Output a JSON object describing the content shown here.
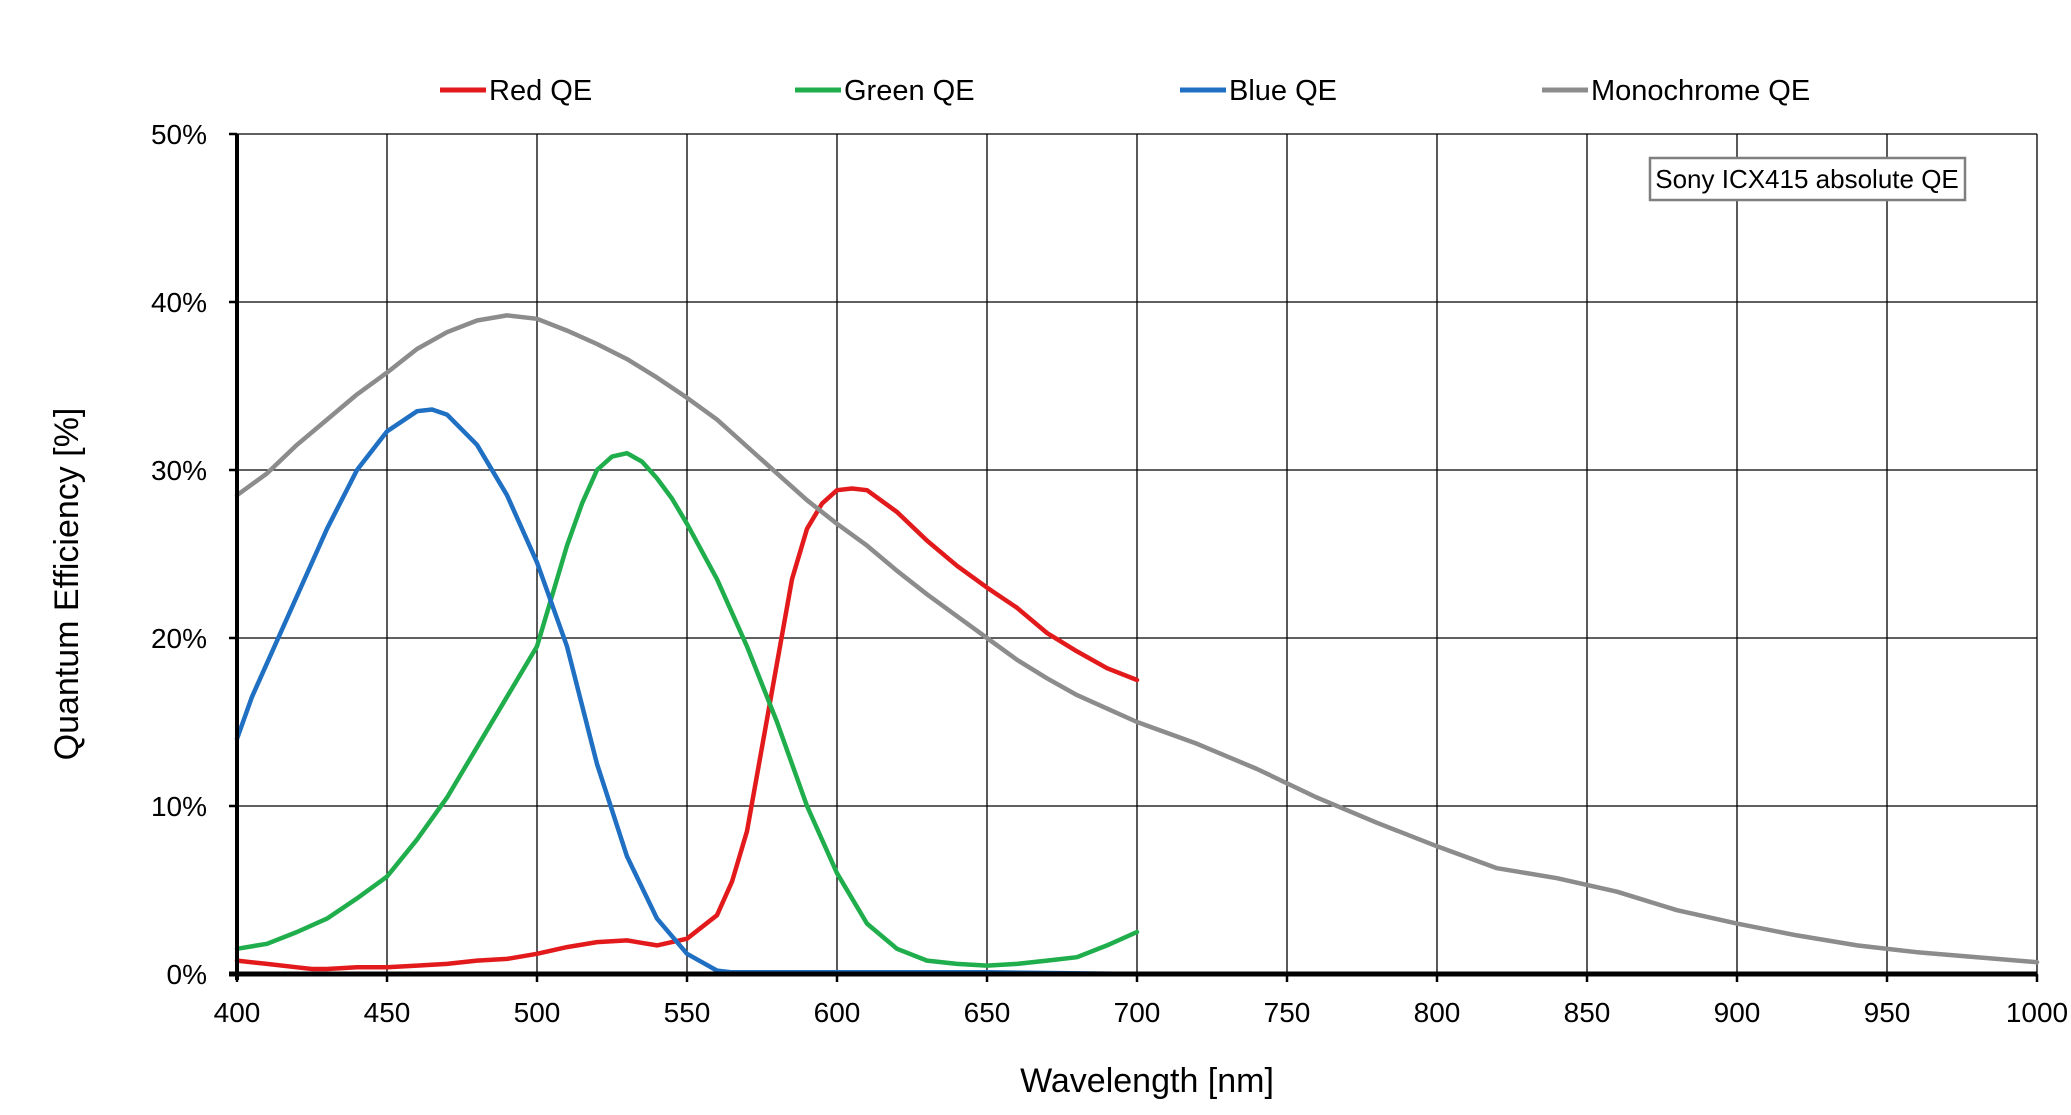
{
  "chart_data": {
    "type": "line",
    "title": "",
    "xlabel": "Wavelength [nm]",
    "ylabel": "Quantum Efficiency [%]",
    "xlim": [
      400,
      1000
    ],
    "ylim": [
      0,
      50
    ],
    "x_ticks": [
      400,
      450,
      500,
      550,
      600,
      650,
      700,
      750,
      800,
      850,
      900,
      950,
      1000
    ],
    "y_ticks": [
      0,
      10,
      20,
      30,
      40,
      50
    ],
    "x_tick_labels": [
      "400",
      "450",
      "500",
      "550",
      "600",
      "650",
      "700",
      "750",
      "800",
      "850",
      "900",
      "950",
      "1000"
    ],
    "y_tick_labels": [
      "0%",
      "10%",
      "20%",
      "30%",
      "40%",
      "50%"
    ],
    "grid": true,
    "legend_position": "top",
    "annotation": "Sony ICX415 absolute QE",
    "series": [
      {
        "name": "Red QE",
        "color": "#e31a1c",
        "x": [
          400,
          410,
          420,
          425,
          430,
          440,
          450,
          460,
          470,
          480,
          490,
          500,
          510,
          520,
          530,
          540,
          550,
          560,
          565,
          570,
          575,
          580,
          585,
          590,
          595,
          600,
          605,
          610,
          620,
          630,
          640,
          650,
          660,
          670,
          680,
          690,
          700
        ],
        "y": [
          0.8,
          0.6,
          0.4,
          0.3,
          0.3,
          0.4,
          0.4,
          0.5,
          0.6,
          0.8,
          0.9,
          1.2,
          1.6,
          1.9,
          2.0,
          1.7,
          2.1,
          3.5,
          5.5,
          8.5,
          13.5,
          18.5,
          23.5,
          26.5,
          28.0,
          28.8,
          28.9,
          28.8,
          27.5,
          25.8,
          24.3,
          23.0,
          21.8,
          20.3,
          19.2,
          18.2,
          17.5
        ]
      },
      {
        "name": "Green QE",
        "color": "#1fae4b",
        "x": [
          400,
          410,
          420,
          430,
          440,
          450,
          460,
          470,
          480,
          490,
          500,
          505,
          510,
          515,
          520,
          525,
          530,
          535,
          540,
          545,
          550,
          560,
          570,
          580,
          590,
          600,
          610,
          620,
          630,
          640,
          650,
          660,
          670,
          680,
          690,
          700
        ],
        "y": [
          1.5,
          1.8,
          2.5,
          3.3,
          4.5,
          5.8,
          8.0,
          10.5,
          13.5,
          16.5,
          19.5,
          22.5,
          25.5,
          28.0,
          30.0,
          30.8,
          31.0,
          30.5,
          29.5,
          28.3,
          26.8,
          23.5,
          19.5,
          15.0,
          10.0,
          6.0,
          3.0,
          1.5,
          0.8,
          0.6,
          0.5,
          0.6,
          0.8,
          1.0,
          1.7,
          2.5
        ]
      },
      {
        "name": "Blue QE",
        "color": "#1f6fc2",
        "x": [
          400,
          405,
          410,
          420,
          430,
          440,
          450,
          460,
          465,
          470,
          480,
          490,
          500,
          510,
          520,
          530,
          540,
          550,
          555,
          560,
          565,
          600,
          650,
          700
        ],
        "y": [
          14.0,
          16.5,
          18.5,
          22.5,
          26.5,
          30.0,
          32.3,
          33.5,
          33.6,
          33.3,
          31.5,
          28.5,
          24.5,
          19.5,
          12.5,
          7.0,
          3.3,
          1.2,
          0.7,
          0.2,
          0.1,
          0.1,
          0.1,
          0.0
        ]
      },
      {
        "name": "Monochrome QE",
        "color": "#8c8c8c",
        "x": [
          400,
          410,
          420,
          430,
          440,
          450,
          460,
          470,
          480,
          490,
          500,
          510,
          520,
          530,
          540,
          550,
          560,
          570,
          580,
          590,
          600,
          610,
          620,
          630,
          640,
          650,
          660,
          670,
          680,
          690,
          700,
          720,
          740,
          760,
          780,
          800,
          820,
          840,
          860,
          880,
          900,
          920,
          940,
          960,
          980,
          1000
        ],
        "y": [
          28.5,
          29.8,
          31.5,
          33.0,
          34.5,
          35.8,
          37.2,
          38.2,
          38.9,
          39.2,
          39.0,
          38.3,
          37.5,
          36.6,
          35.5,
          34.3,
          33.0,
          31.4,
          29.8,
          28.2,
          26.8,
          25.5,
          24.0,
          22.6,
          21.3,
          20.0,
          18.7,
          17.6,
          16.6,
          15.8,
          15.0,
          13.7,
          12.2,
          10.5,
          9.0,
          7.6,
          6.3,
          5.7,
          4.9,
          3.8,
          3.0,
          2.3,
          1.7,
          1.3,
          1.0,
          0.7
        ]
      }
    ]
  }
}
